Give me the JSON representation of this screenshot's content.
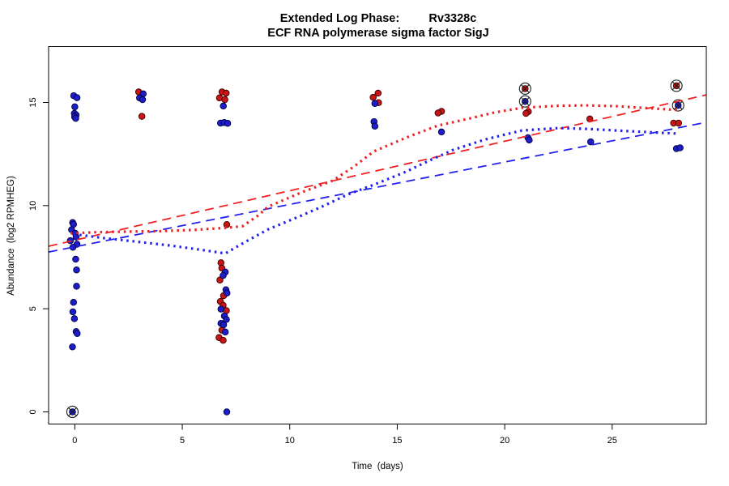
{
  "chart_data": {
    "type": "scatter",
    "title": "Extended Log Phase:         Rv3328c",
    "subtitle": "ECF RNA polymerase sigma factor SigJ",
    "xlabel": "Time  (days)",
    "ylabel": "Abundance  (log2 RPMHEG)",
    "xlim": [
      -1.22,
      29.38
    ],
    "ylim": [
      -0.59,
      17.71
    ],
    "xticks": [
      0,
      5,
      10,
      15,
      20,
      25
    ],
    "yticks": [
      0,
      5,
      10,
      15
    ],
    "grid": false,
    "legend": "none",
    "colors": {
      "red_points": "#C81414",
      "red_edge": "#3C0000",
      "blue_points": "#1E1EC8",
      "blue_edge": "#000046",
      "red_line": "#EE2222",
      "blue_line": "#2222EE",
      "highlight_ring": "#1a1a1a",
      "frame": "#000000"
    },
    "series": [
      {
        "name": "condition-red",
        "marker_color": "#C81414",
        "edge_color": "#3C0000",
        "points": [
          [
            2.97,
            15.51
          ],
          [
            3.12,
            14.33
          ],
          [
            6.85,
            15.51
          ],
          [
            7.04,
            15.45
          ],
          [
            6.73,
            15.22
          ],
          [
            6.98,
            15.14
          ],
          [
            7.07,
            9.08
          ],
          [
            6.8,
            7.23
          ],
          [
            6.84,
            6.97
          ],
          [
            6.75,
            6.39
          ],
          [
            6.92,
            5.63
          ],
          [
            6.77,
            5.35
          ],
          [
            6.9,
            5.17
          ],
          [
            7.05,
            4.91
          ],
          [
            6.84,
            3.96
          ],
          [
            6.71,
            3.6
          ],
          [
            6.9,
            3.47
          ],
          [
            14.11,
            15.45
          ],
          [
            13.88,
            15.25
          ],
          [
            14.13,
            14.99
          ],
          [
            17.06,
            14.57
          ],
          [
            16.9,
            14.49
          ],
          [
            21.1,
            14.56
          ],
          [
            20.99,
            14.47
          ],
          [
            23.96,
            14.2
          ],
          [
            27.86,
            14.0
          ],
          [
            28.09,
            14.0
          ]
        ]
      },
      {
        "name": "condition-blue",
        "marker_color": "#1E1EC8",
        "edge_color": "#000046",
        "points": [
          [
            -0.05,
            15.33
          ],
          [
            0.1,
            15.23
          ],
          [
            0.0,
            14.79
          ],
          [
            -0.02,
            14.47
          ],
          [
            0.06,
            14.39
          ],
          [
            -0.01,
            14.31
          ],
          [
            0.04,
            14.23
          ],
          [
            -0.1,
            9.18
          ],
          [
            -0.06,
            9.09
          ],
          [
            -0.15,
            8.83
          ],
          [
            0.02,
            8.66
          ],
          [
            0.06,
            8.47
          ],
          [
            -0.21,
            8.3
          ],
          [
            0.1,
            8.13
          ],
          [
            -0.09,
            7.98
          ],
          [
            0.04,
            7.4
          ],
          [
            0.08,
            6.88
          ],
          [
            0.08,
            6.09
          ],
          [
            -0.06,
            5.31
          ],
          [
            -0.09,
            4.85
          ],
          [
            -0.02,
            4.52
          ],
          [
            0.06,
            3.89
          ],
          [
            0.11,
            3.8
          ],
          [
            -0.11,
            3.15
          ],
          [
            3.18,
            15.42
          ],
          [
            3.01,
            15.22
          ],
          [
            3.15,
            15.14
          ],
          [
            6.91,
            14.83
          ],
          [
            6.78,
            14.0
          ],
          [
            6.95,
            14.03
          ],
          [
            7.11,
            13.99
          ],
          [
            7.0,
            6.78
          ],
          [
            6.9,
            6.61
          ],
          [
            7.03,
            5.92
          ],
          [
            7.08,
            5.76
          ],
          [
            6.8,
            4.98
          ],
          [
            6.96,
            4.65
          ],
          [
            7.05,
            4.48
          ],
          [
            6.8,
            4.29
          ],
          [
            6.92,
            4.22
          ],
          [
            7.0,
            3.87
          ],
          [
            7.07,
            0.0
          ],
          [
            13.96,
            14.95
          ],
          [
            13.92,
            14.07
          ],
          [
            13.96,
            13.85
          ],
          [
            17.06,
            13.57
          ],
          [
            21.08,
            13.29
          ],
          [
            21.14,
            13.18
          ],
          [
            24.0,
            13.09
          ],
          [
            27.99,
            12.76
          ],
          [
            28.16,
            12.8
          ]
        ]
      }
    ],
    "highlighted_points": [
      {
        "series": "condition-blue",
        "x": -0.11,
        "y": 0.0
      },
      {
        "series": "condition-red",
        "x": 20.95,
        "y": 15.67
      },
      {
        "series": "condition-blue",
        "x": 20.95,
        "y": 15.05
      },
      {
        "series": "condition-red",
        "x": 27.99,
        "y": 15.81
      },
      {
        "series": "condition-blue",
        "x": 28.07,
        "y": 14.86
      }
    ],
    "trend_lines": [
      {
        "name": "red-linear-trend",
        "color": "#EE2222",
        "style": "dashed",
        "points": [
          [
            -1.22,
            8.03
          ],
          [
            29.38,
            15.37
          ]
        ]
      },
      {
        "name": "blue-linear-trend",
        "color": "#2222EE",
        "style": "dashed",
        "points": [
          [
            -1.22,
            7.75
          ],
          [
            29.38,
            14.04
          ]
        ]
      },
      {
        "name": "red-lowess-trend",
        "color": "#EE2222",
        "style": "dotted",
        "points": [
          [
            -0.2,
            8.66
          ],
          [
            1.0,
            8.71
          ],
          [
            2.5,
            8.74
          ],
          [
            4.0,
            8.76
          ],
          [
            5.5,
            8.82
          ],
          [
            7.0,
            8.92
          ],
          [
            7.8,
            9.0
          ],
          [
            8.5,
            9.5
          ],
          [
            9.0,
            9.95
          ],
          [
            10.5,
            10.62
          ],
          [
            12.0,
            11.21
          ],
          [
            13.0,
            11.9
          ],
          [
            13.9,
            12.62
          ],
          [
            15.4,
            13.29
          ],
          [
            16.9,
            13.88
          ],
          [
            18.4,
            14.23
          ],
          [
            19.5,
            14.51
          ],
          [
            20.8,
            14.74
          ],
          [
            22.5,
            14.84
          ],
          [
            23.8,
            14.86
          ],
          [
            25.2,
            14.82
          ],
          [
            26.7,
            14.72
          ],
          [
            28.1,
            14.63
          ]
        ]
      },
      {
        "name": "blue-lowess-trend",
        "color": "#2222EE",
        "style": "dotted",
        "points": [
          [
            -0.05,
            8.62
          ],
          [
            1.4,
            8.42
          ],
          [
            2.9,
            8.25
          ],
          [
            4.4,
            8.07
          ],
          [
            5.8,
            7.87
          ],
          [
            7.0,
            7.68
          ],
          [
            8.0,
            8.28
          ],
          [
            9.0,
            8.85
          ],
          [
            10.5,
            9.5
          ],
          [
            11.5,
            9.95
          ],
          [
            12.7,
            10.54
          ],
          [
            14.0,
            11.05
          ],
          [
            15.4,
            11.64
          ],
          [
            16.5,
            12.19
          ],
          [
            17.6,
            12.7
          ],
          [
            19.1,
            13.21
          ],
          [
            20.8,
            13.64
          ],
          [
            22.5,
            13.76
          ],
          [
            23.8,
            13.72
          ],
          [
            25.2,
            13.64
          ],
          [
            26.7,
            13.56
          ],
          [
            28.1,
            13.49
          ]
        ]
      }
    ]
  }
}
